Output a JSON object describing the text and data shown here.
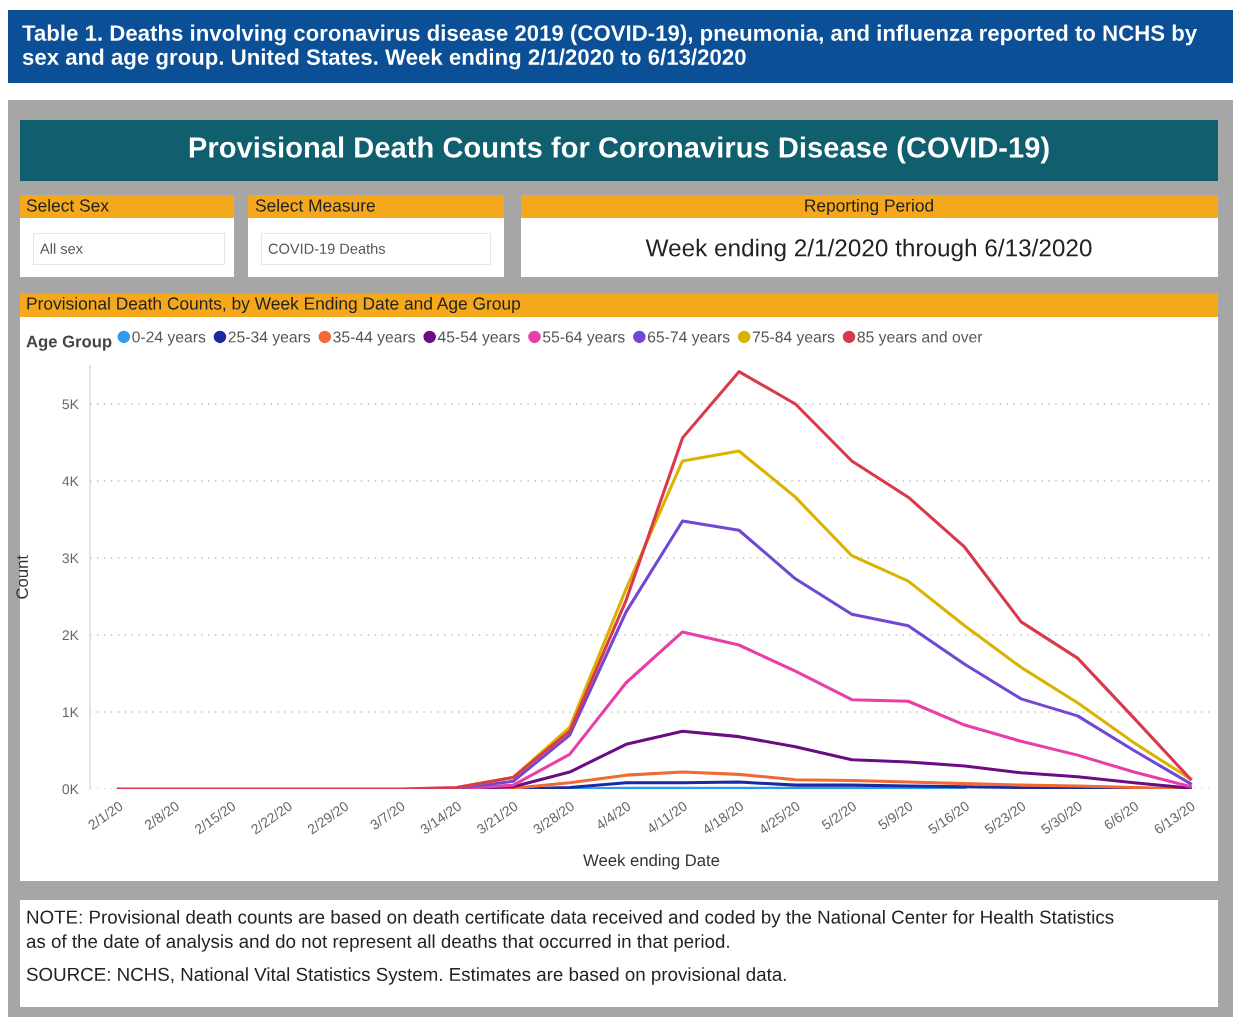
{
  "chart_data": {
    "type": "line",
    "title": "Table 1. Deaths involving coronavirus disease 2019 (COVID-19), pneumonia, and influenza reported to NCHS by sex and age group. United States. Week ending 2/1/2020 to 6/13/2020",
    "subtitle": "Provisional Death Counts for Coronavirus Disease (COVID-19)",
    "annotations": [
      "Select Sex",
      "All sex",
      "Select Measure",
      "COVID-19 Deaths",
      "Reporting Period",
      "Week ending 2/1/2020 through 6/13/2020",
      "Provisional Death Counts, by Week Ending Date and Age Group",
      "NOTE: Provisional death counts are based on death certificate data received and coded by the National Center for Health Statistics\nas of the date of analysis and do not represent all deaths that occurred in that period.",
      "SOURCE: NCHS, National Vital Statistics System. Estimates are based on provisional data."
    ],
    "xlabel": "Week ending Date",
    "ylabel": "Count",
    "legend_title": "Age Group",
    "categories": [
      "2/1/20",
      "2/8/20",
      "2/15/20",
      "2/22/20",
      "2/29/20",
      "3/7/20",
      "3/14/20",
      "3/21/20",
      "3/28/20",
      "4/4/20",
      "4/11/20",
      "4/18/20",
      "4/25/20",
      "5/2/20",
      "5/9/20",
      "5/16/20",
      "5/23/20",
      "5/30/20",
      "6/6/20",
      "6/13/20"
    ],
    "ylim": [
      0,
      5500
    ],
    "yticks": [
      {
        "value": 0,
        "label": "0K"
      },
      {
        "value": 1000,
        "label": "1K"
      },
      {
        "value": 2000,
        "label": "2K"
      },
      {
        "value": 3000,
        "label": "3K"
      },
      {
        "value": 4000,
        "label": "4K"
      },
      {
        "value": 5000,
        "label": "5K"
      }
    ],
    "grid": "y",
    "legend": "top left",
    "marker": "none",
    "line_style": "solid",
    "series": [
      {
        "name": "0-24 years",
        "color": "#2f9bf0",
        "values": [
          null,
          null,
          null,
          null,
          null,
          null,
          null,
          null,
          0,
          10,
          10,
          10,
          10,
          10,
          10,
          10,
          null,
          null,
          null,
          null
        ]
      },
      {
        "name": "25-34 years",
        "color": "#1a2aa0",
        "values": [
          null,
          null,
          null,
          null,
          null,
          null,
          0,
          0,
          20,
          80,
          80,
          90,
          50,
          50,
          40,
          30,
          20,
          20,
          10,
          0
        ]
      },
      {
        "name": "35-44 years",
        "color": "#ef6b33",
        "values": [
          null,
          null,
          null,
          null,
          null,
          null,
          0,
          10,
          80,
          180,
          220,
          190,
          120,
          110,
          90,
          70,
          50,
          40,
          20,
          0
        ]
      },
      {
        "name": "45-54 years",
        "color": "#6a0d83",
        "values": [
          null,
          null,
          null,
          null,
          null,
          null,
          0,
          30,
          220,
          580,
          750,
          680,
          550,
          380,
          350,
          300,
          210,
          160,
          80,
          10
        ]
      },
      {
        "name": "55-64 years",
        "color": "#e83fa7",
        "values": [
          null,
          null,
          null,
          null,
          null,
          null,
          0,
          50,
          450,
          1380,
          2040,
          1870,
          1530,
          1160,
          1140,
          830,
          620,
          440,
          220,
          30
        ]
      },
      {
        "name": "65-74 years",
        "color": "#7048d4",
        "values": [
          null,
          null,
          null,
          null,
          null,
          null,
          10,
          100,
          700,
          2300,
          3480,
          3360,
          2730,
          2270,
          2120,
          1620,
          1170,
          950,
          500,
          70
        ]
      },
      {
        "name": "75-84 years",
        "color": "#d9b300",
        "values": [
          null,
          null,
          null,
          null,
          null,
          null,
          20,
          150,
          800,
          2600,
          4260,
          4390,
          3790,
          3030,
          2700,
          2120,
          1580,
          1120,
          600,
          130
        ]
      },
      {
        "name": "85 years and over",
        "color": "#d9394b",
        "values": [
          0,
          0,
          0,
          0,
          0,
          0,
          20,
          150,
          750,
          2450,
          4560,
          5420,
          5000,
          4260,
          3790,
          3140,
          2170,
          1700,
          920,
          130
        ]
      }
    ]
  }
}
